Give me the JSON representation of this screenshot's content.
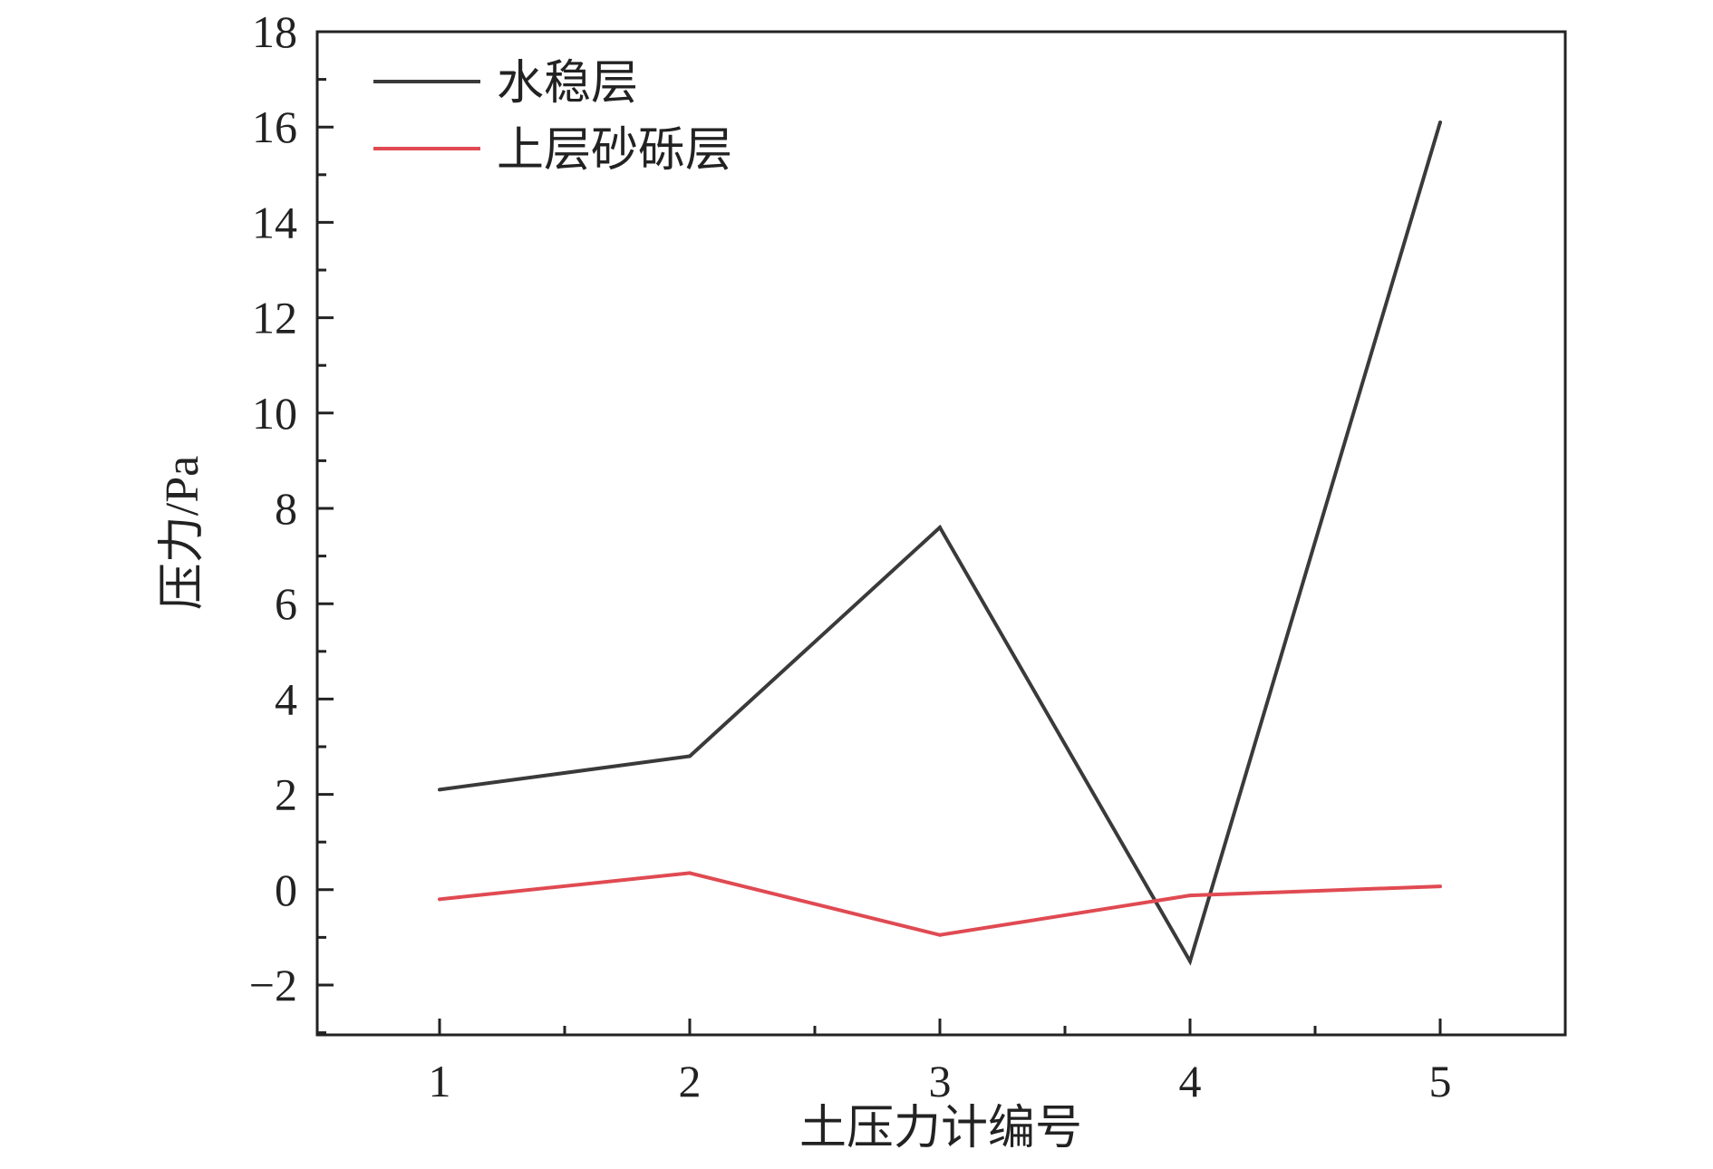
{
  "chart_data": {
    "type": "line",
    "x": [
      1,
      2,
      3,
      4,
      5
    ],
    "series": [
      {
        "name": "水稳层",
        "values": [
          2.1,
          2.8,
          7.6,
          -1.5,
          16.1
        ],
        "color": "#3a3a3a"
      },
      {
        "name": "上层砂砾层",
        "values": [
          -0.2,
          0.35,
          -0.95,
          -0.12,
          0.07
        ],
        "color": "#e04a52"
      }
    ],
    "xlabel": "土压力计编号",
    "ylabel": "压力/Pa",
    "xlim": [
      0.5,
      5.5
    ],
    "ylim": [
      -3,
      18
    ],
    "x_ticks": [
      {
        "value": 1,
        "label": "1"
      },
      {
        "value": 2,
        "label": "2"
      },
      {
        "value": 3,
        "label": "3"
      },
      {
        "value": 4,
        "label": "4"
      },
      {
        "value": 5,
        "label": "5"
      }
    ],
    "y_ticks": [
      {
        "value": -2,
        "label": "−2"
      },
      {
        "value": 0,
        "label": "0"
      },
      {
        "value": 2,
        "label": "2"
      },
      {
        "value": 4,
        "label": "4"
      },
      {
        "value": 6,
        "label": "6"
      },
      {
        "value": 8,
        "label": "8"
      },
      {
        "value": 10,
        "label": "10"
      },
      {
        "value": 12,
        "label": "12"
      },
      {
        "value": 14,
        "label": "14"
      },
      {
        "value": 16,
        "label": "16"
      },
      {
        "value": 18,
        "label": "18"
      }
    ],
    "grid": false,
    "legend": "top-left"
  }
}
